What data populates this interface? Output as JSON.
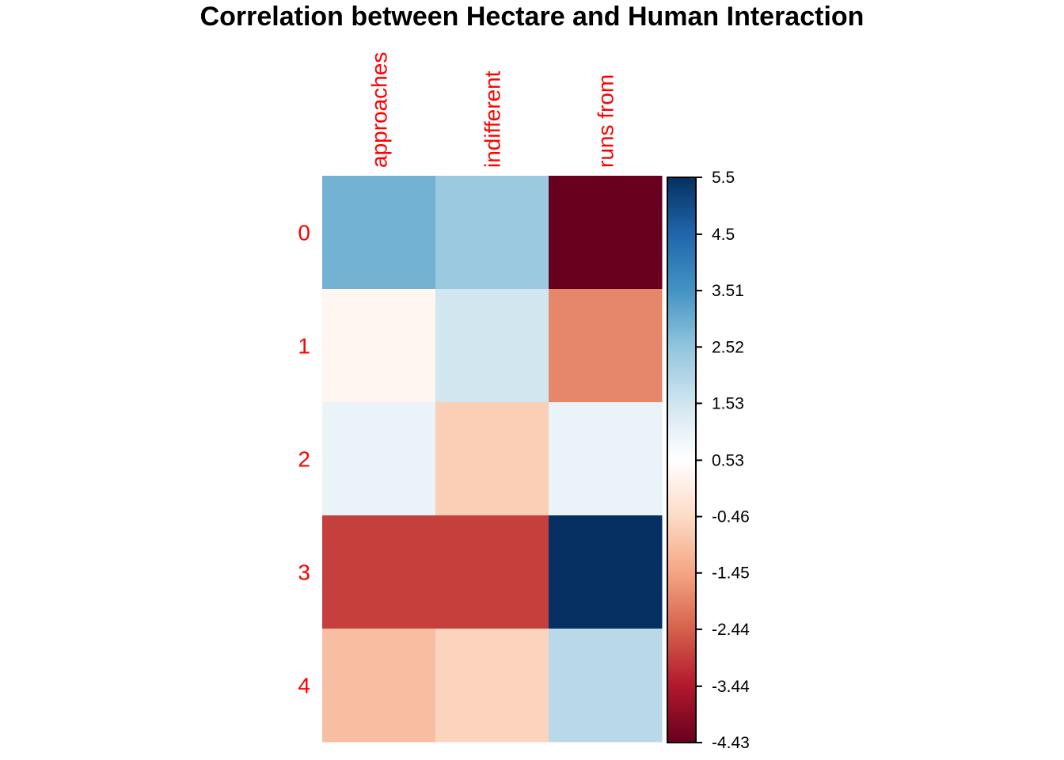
{
  "chart_data": {
    "type": "heatmap",
    "title": "Correlation between Hectare and Human Interaction",
    "columns": [
      "approaches",
      "indifferent",
      "runs from"
    ],
    "rows": [
      "0",
      "1",
      "2",
      "3",
      "4"
    ],
    "values": [
      [
        2.9,
        2.4,
        -4.43
      ],
      [
        0.3,
        1.5,
        -1.9
      ],
      [
        1.0,
        -0.7,
        1.0
      ],
      [
        -2.9,
        -2.9,
        5.5
      ],
      [
        -1.0,
        -0.6,
        1.9
      ]
    ],
    "colorbar": {
      "min": -4.43,
      "max": 5.5,
      "ticks": [
        {
          "value": 5.5,
          "label": "5.5"
        },
        {
          "value": 4.5,
          "label": "4.5"
        },
        {
          "value": 3.51,
          "label": "3.51"
        },
        {
          "value": 2.52,
          "label": "2.52"
        },
        {
          "value": 1.53,
          "label": "1.53"
        },
        {
          "value": 0.53,
          "label": "0.53"
        },
        {
          "value": -0.46,
          "label": "-0.46"
        },
        {
          "value": -1.45,
          "label": "-1.45"
        },
        {
          "value": -2.44,
          "label": "-2.44"
        },
        {
          "value": -3.44,
          "label": "-3.44"
        },
        {
          "value": -4.43,
          "label": "-4.43"
        }
      ],
      "palette": [
        "#67001F",
        "#B2182B",
        "#D6604D",
        "#F4A582",
        "#FDDBC7",
        "#FFFFFF",
        "#D1E5F0",
        "#92C5DE",
        "#4393C3",
        "#2166AC",
        "#053061"
      ]
    }
  }
}
